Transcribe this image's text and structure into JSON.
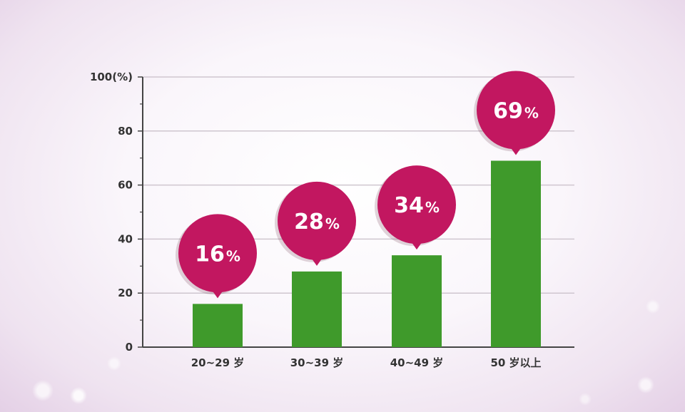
{
  "chart_data": {
    "type": "bar",
    "title": "",
    "xlabel": "",
    "ylabel": "",
    "y_unit_label": "100(%)",
    "ylim": [
      0,
      100
    ],
    "y_ticks": [
      "0",
      "20",
      "40",
      "60",
      "80",
      "100(%)"
    ],
    "y_tick_values": [
      0,
      20,
      40,
      60,
      80,
      100
    ],
    "grid": true,
    "categories": [
      "20~29 岁",
      "30~39 岁",
      "40~49 岁",
      "50 岁以上"
    ],
    "values": [
      16,
      28,
      34,
      69
    ],
    "data_labels": [
      {
        "number": "16",
        "unit": "%"
      },
      {
        "number": "28",
        "unit": "%"
      },
      {
        "number": "34",
        "unit": "%"
      },
      {
        "number": "69",
        "unit": "%"
      }
    ]
  },
  "colors": {
    "bar": "#3f9a2b",
    "bubble": "#c21760",
    "bubble_text": "#ffffff",
    "axis": "#444444",
    "grid": "#cfc6cf",
    "label": "#333333"
  }
}
